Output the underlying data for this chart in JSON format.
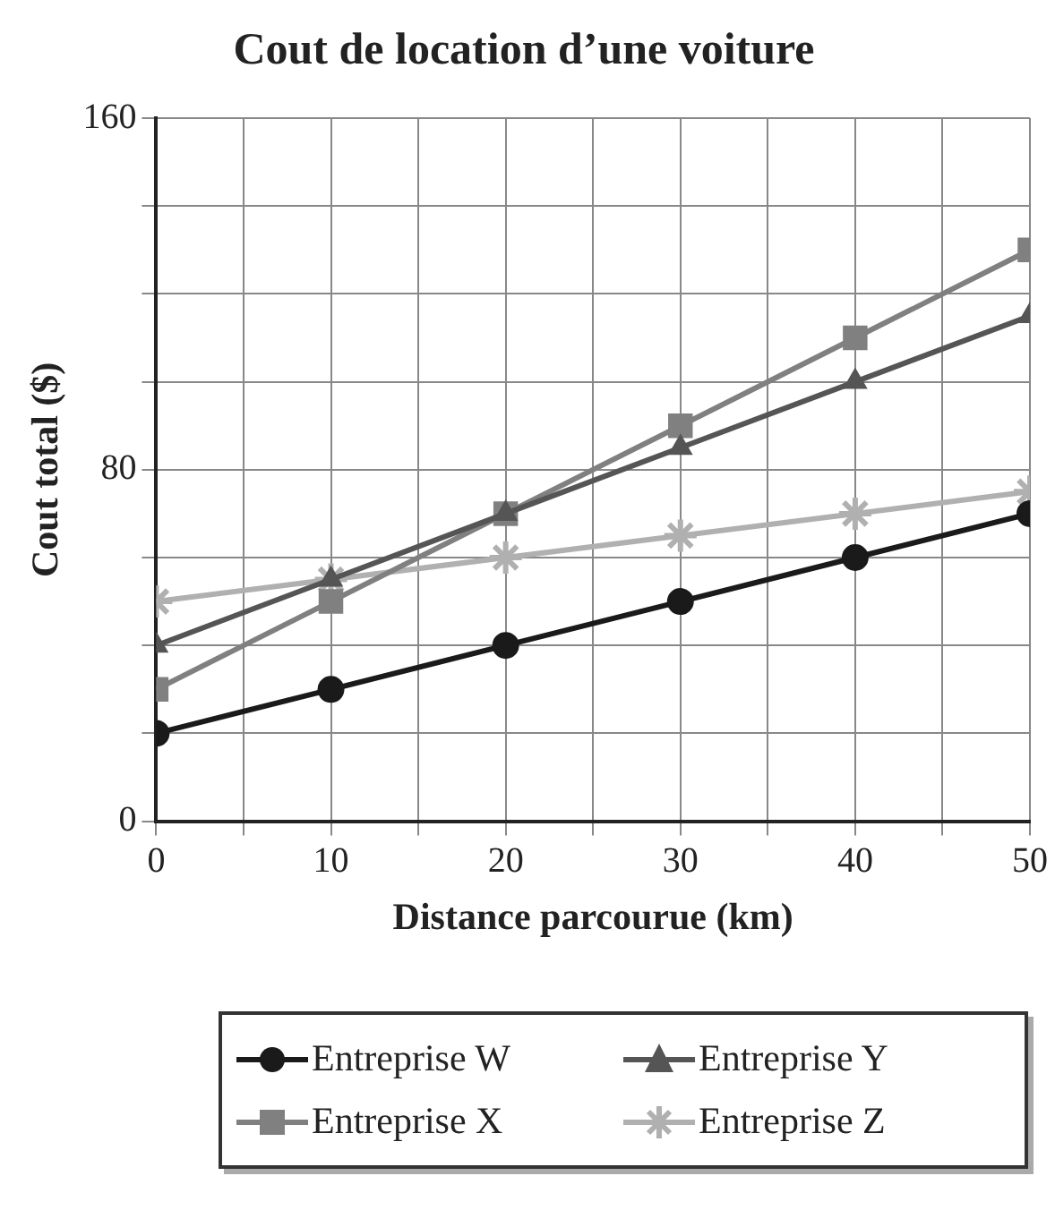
{
  "chart_data": {
    "type": "line",
    "title": "Cout de location d’une voiture",
    "xlabel": "Distance parcourue (km)",
    "ylabel": "Cout total ($)",
    "x": [
      0,
      10,
      20,
      30,
      40,
      50
    ],
    "xlim": [
      0,
      50
    ],
    "xticks": [
      0,
      {
        "value": 5,
        "label": null
      },
      10,
      {
        "value": 15,
        "label": null
      },
      20,
      {
        "value": 25,
        "label": null
      },
      30,
      {
        "value": 35,
        "label": null
      },
      40,
      {
        "value": 45,
        "label": null
      },
      50
    ],
    "ylim": [
      0,
      160
    ],
    "yticks": [
      0,
      {
        "value": 20,
        "label": null
      },
      {
        "value": 40,
        "label": null
      },
      {
        "value": 60,
        "label": null
      },
      80,
      {
        "value": 100,
        "label": null
      },
      {
        "value": 120,
        "label": null
      },
      {
        "value": 140,
        "label": null
      },
      160
    ],
    "grid": true,
    "legend": "bottom",
    "line_style": "solid",
    "series": [
      {
        "name": "Entreprise W",
        "color": "#1a1a1a",
        "marker": "circle",
        "values": [
          20,
          30,
          40,
          50,
          60,
          70
        ]
      },
      {
        "name": "Entreprise Y",
        "color": "#555555",
        "marker": "triangle",
        "values": [
          40,
          55,
          70,
          85,
          100,
          115
        ]
      },
      {
        "name": "Entreprise X",
        "color": "#808080",
        "marker": "square",
        "values": [
          30,
          50,
          70,
          90,
          110,
          130
        ]
      },
      {
        "name": "Entreprise Z",
        "color": "#b0b0b0",
        "marker": "cross",
        "values": [
          50,
          55,
          60,
          65,
          70,
          75
        ]
      }
    ]
  }
}
